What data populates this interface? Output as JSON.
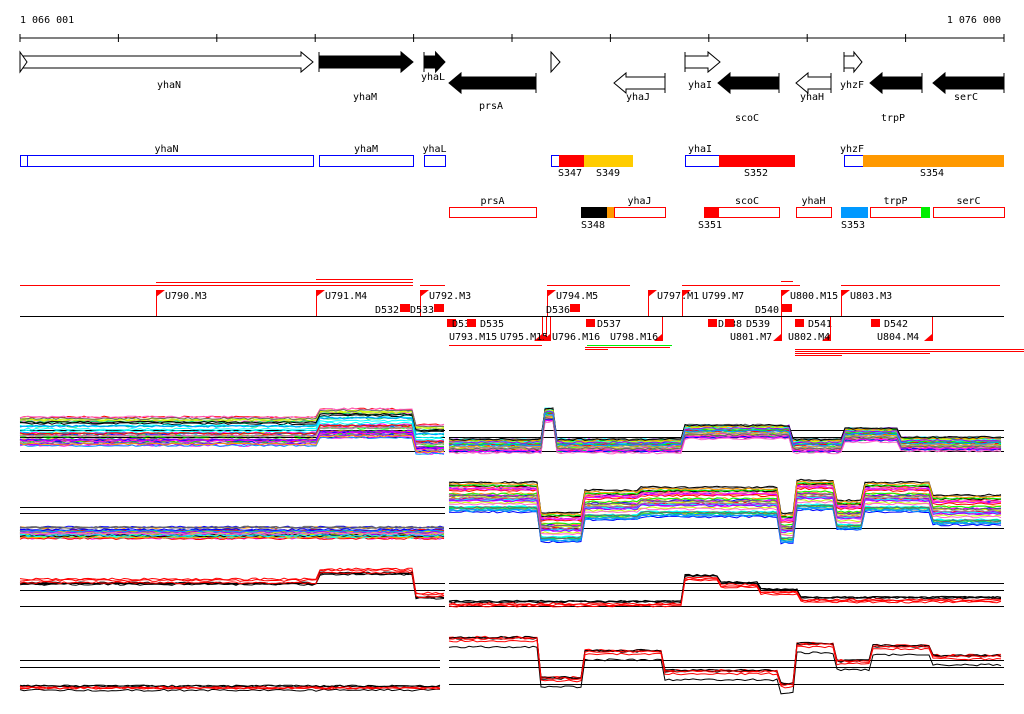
{
  "ruler": {
    "start_label": "1 066 001",
    "end_label": "1 076 000"
  },
  "genes": [
    {
      "name": "yhaN",
      "strand": "+",
      "style": "open"
    },
    {
      "name": "yhaM",
      "strand": "+",
      "style": "filled"
    },
    {
      "name": "yhaL",
      "strand": "+",
      "style": "filled"
    },
    {
      "name": "prsA",
      "strand": "-",
      "style": "filled"
    },
    {
      "name": "yhaJ",
      "strand": "-",
      "style": "open"
    },
    {
      "name": "yhaI",
      "strand": "+",
      "style": "open"
    },
    {
      "name": "scoC",
      "strand": "-",
      "style": "filled"
    },
    {
      "name": "yhaH",
      "strand": "-",
      "style": "open"
    },
    {
      "name": "yhzF",
      "strand": "+",
      "style": "open"
    },
    {
      "name": "trpP",
      "strand": "-",
      "style": "filled"
    },
    {
      "name": "serC",
      "strand": "-",
      "style": "filled"
    }
  ],
  "forward_segments": {
    "gene_labels": [
      "yhaN",
      "yhaM",
      "yhaL",
      "yhaI",
      "yhzF"
    ],
    "segment_labels": [
      "S347",
      "S349",
      "S352",
      "S354"
    ]
  },
  "reverse_segments": {
    "gene_labels": [
      "prsA",
      "yhaJ",
      "scoC",
      "yhaH",
      "trpP",
      "serC"
    ],
    "segment_labels": [
      "S348",
      "S351",
      "S353"
    ]
  },
  "upshifts_top": [
    "U790.M3",
    "U791.M4",
    "U792.M3",
    "U794.M5",
    "U797.M1",
    "U799.M7",
    "U800.M15",
    "U803.M3"
  ],
  "downshifts_top": [
    "D532",
    "D533",
    "D536",
    "D540"
  ],
  "downshifts_bottom": [
    "D534",
    "D535",
    "D537",
    "D538",
    "D539",
    "D541",
    "D542"
  ],
  "upshifts_bottom": [
    "U793.M15",
    "U795.M15",
    "U796.M16",
    "U798.M16",
    "U801.M7",
    "U802.M4",
    "U804.M4"
  ],
  "colors": {
    "forward_box": "#0000ff",
    "reverse_box": "#ff0000",
    "S347": "#ff0000",
    "S349": "#ffcc00",
    "S352": "#ff0000",
    "S354": "#ff9900",
    "S348": "#000000",
    "S351": "#ff0000",
    "S353": "#0099ff",
    "marker": "#ff0000"
  }
}
